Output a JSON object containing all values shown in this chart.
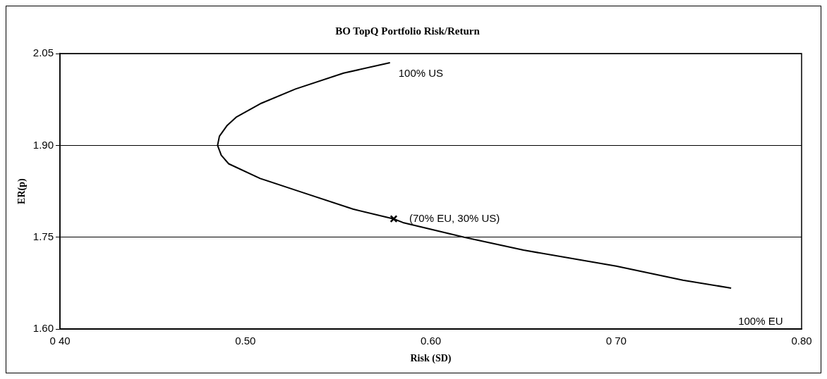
{
  "chart_data": {
    "type": "line",
    "title": "BO TopQ Portfolio Risk/Return",
    "xlabel": "Risk (SD)",
    "ylabel": "ER(p)",
    "series": [
      {
        "type": "line",
        "color": "#000000",
        "marker": "none",
        "x": [
          0.578,
          0.553,
          0.527,
          0.508,
          0.495,
          0.49,
          0.486,
          0.485,
          0.487,
          0.491,
          0.508,
          0.529,
          0.558,
          0.58,
          0.585,
          0.618,
          0.65,
          0.7,
          0.736,
          0.762
        ],
        "values": [
          2.035,
          2.018,
          1.992,
          1.968,
          1.946,
          1.932,
          1.915,
          1.9,
          1.884,
          1.87,
          1.846,
          1.825,
          1.796,
          1.78,
          1.774,
          1.75,
          1.729,
          1.703,
          1.68,
          1.667
        ]
      },
      {
        "type": "scatter",
        "color": "#000000",
        "marker": "cross",
        "x": [
          0.58
        ],
        "values": [
          1.78
        ]
      }
    ],
    "xlim": [
      0.4,
      0.8
    ],
    "xticks": [
      {
        "value": 0.4,
        "label": "0 40"
      },
      {
        "value": 0.5,
        "label": "0.50"
      },
      {
        "value": 0.6,
        "label": "0.60"
      },
      {
        "value": 0.7,
        "label": "0 70"
      },
      {
        "value": 0.8,
        "label": "0.80"
      }
    ],
    "ylim": [
      1.6,
      2.05
    ],
    "yticks": [
      {
        "value": 1.6,
        "label": "1.60"
      },
      1.75,
      {
        "value": 1.9,
        "label": "1.90"
      },
      2.05
    ],
    "grid": "y",
    "legend": false,
    "annotations": [
      {
        "text": "100% US",
        "x": 0.578,
        "y": 2.035
      },
      {
        "text": "(70% EU, 30% US)",
        "x": 0.58,
        "y": 1.78
      },
      {
        "text": "100% EU",
        "x": 0.762,
        "y": 1.667
      }
    ]
  }
}
